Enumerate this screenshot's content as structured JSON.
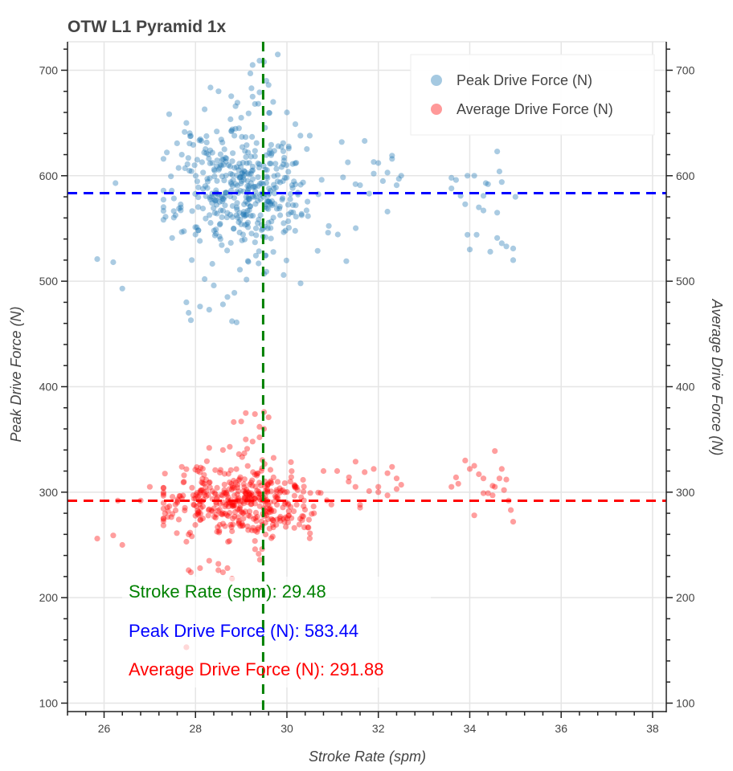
{
  "chart_data": {
    "type": "scatter",
    "title": "OTW L1 Pyramid 1x",
    "xlabel": "Stroke Rate (spm)",
    "ylabel": "Peak Drive Force (N)",
    "ylabel_right": "Average Drive Force (N)",
    "xlim": [
      25.2,
      38.3
    ],
    "ylim": [
      92,
      727
    ],
    "x_ticks": [
      "26",
      "28",
      "30",
      "32",
      "34",
      "36",
      "38"
    ],
    "x_tick_values": [
      26,
      28,
      30,
      32,
      34,
      36,
      38
    ],
    "y_ticks": [
      "100",
      "200",
      "300",
      "400",
      "500",
      "600",
      "700"
    ],
    "y_tick_values": [
      100,
      200,
      300,
      400,
      500,
      600,
      700
    ],
    "grid": true,
    "legend_position": "top-right",
    "legend": [
      {
        "label": "Peak Drive Force (N)",
        "color": "#1f77b4"
      },
      {
        "label": "Average Drive Force (N)",
        "color": "#ff0000"
      }
    ],
    "reference_lines": {
      "stroke_rate_mean": {
        "value": 29.48,
        "color": "#008000"
      },
      "peak_force_mean": {
        "value": 583.44,
        "color": "#0000ff"
      },
      "avg_force_mean": {
        "value": 291.88,
        "color": "#ff0000"
      }
    },
    "annotations": [
      {
        "text": "Stroke Rate (spm):  29.48",
        "color": "#008000"
      },
      {
        "text": "Peak Drive Force (N): 583.44",
        "color": "#0000ff"
      },
      {
        "text": "Average Drive Force (N): 291.88",
        "color": "#ff0000"
      }
    ],
    "series": [
      {
        "name": "Peak Drive Force (N)",
        "color": "#1f77b4",
        "cluster": {
          "n": 430,
          "seed": 11,
          "x_mean": 29.1,
          "x_sd": 0.85,
          "y_mean": 590,
          "y_sd": 32
        },
        "points": [
          [
            25.85,
            521
          ],
          [
            26.2,
            518
          ],
          [
            26.4,
            493
          ],
          [
            26.25,
            593
          ],
          [
            27.8,
            480
          ],
          [
            27.9,
            463
          ],
          [
            27.85,
            470
          ],
          [
            28.1,
            476
          ],
          [
            28.3,
            473
          ],
          [
            28.6,
            478
          ],
          [
            28.8,
            462
          ],
          [
            28.9,
            461
          ],
          [
            28.85,
            489
          ],
          [
            28.7,
            485
          ],
          [
            28.4,
            496
          ],
          [
            28.2,
            502
          ],
          [
            29.5,
            507
          ],
          [
            29.55,
            509
          ],
          [
            30.3,
            498
          ],
          [
            31.3,
            519
          ],
          [
            30.9,
            546
          ],
          [
            29.0,
            655
          ],
          [
            29.3,
            668
          ],
          [
            29.4,
            679
          ],
          [
            29.25,
            675
          ],
          [
            29.55,
            690
          ],
          [
            29.2,
            697
          ],
          [
            29.25,
            705
          ],
          [
            29.5,
            708
          ],
          [
            29.4,
            709
          ],
          [
            29.8,
            715
          ],
          [
            29.6,
            686
          ],
          [
            29.7,
            670
          ],
          [
            30.0,
            660
          ],
          [
            28.95,
            645
          ],
          [
            27.8,
            650
          ],
          [
            28.2,
            663
          ],
          [
            30.5,
            638
          ],
          [
            31.2,
            632
          ],
          [
            31.7,
            633
          ],
          [
            31.9,
            613
          ],
          [
            32.0,
            612
          ],
          [
            32.2,
            603
          ],
          [
            32.3,
            619
          ],
          [
            32.3,
            616
          ],
          [
            32.5,
            600
          ],
          [
            32.4,
            591
          ],
          [
            32.1,
            595
          ],
          [
            31.5,
            592
          ],
          [
            31.6,
            591
          ],
          [
            31.8,
            583
          ],
          [
            32.2,
            566
          ],
          [
            31.9,
            602
          ],
          [
            32.45,
            597
          ],
          [
            33.6,
            598
          ],
          [
            33.7,
            596
          ],
          [
            33.6,
            588
          ],
          [
            33.8,
            581
          ],
          [
            33.9,
            573
          ],
          [
            33.95,
            600
          ],
          [
            34.1,
            600
          ],
          [
            34.2,
            570
          ],
          [
            34.4,
            592
          ],
          [
            34.35,
            593
          ],
          [
            34.65,
            604
          ],
          [
            34.6,
            623
          ],
          [
            34.7,
            594
          ],
          [
            34.3,
            567
          ],
          [
            34.6,
            565
          ],
          [
            33.95,
            544
          ],
          [
            34.15,
            544
          ],
          [
            34.0,
            530
          ],
          [
            34.45,
            528
          ],
          [
            34.6,
            541
          ],
          [
            34.7,
            536
          ],
          [
            34.8,
            533
          ],
          [
            34.95,
            531
          ],
          [
            34.95,
            520
          ],
          [
            34.3,
            581
          ],
          [
            35.0,
            580
          ]
        ]
      },
      {
        "name": "Average Drive Force (N)",
        "color": "#ff0000",
        "cluster": {
          "n": 420,
          "seed": 29,
          "x_mean": 29.05,
          "x_sd": 0.85,
          "y_mean": 290,
          "y_sd": 18
        },
        "points": [
          [
            25.85,
            256
          ],
          [
            26.2,
            259
          ],
          [
            26.4,
            250
          ],
          [
            26.3,
            292
          ],
          [
            26.8,
            292
          ],
          [
            27.0,
            305
          ],
          [
            27.3,
            304
          ],
          [
            27.6,
            290
          ],
          [
            27.4,
            282
          ],
          [
            27.7,
            294
          ],
          [
            27.7,
            324
          ],
          [
            27.75,
            316
          ],
          [
            28.05,
            320
          ],
          [
            27.8,
            253
          ],
          [
            27.85,
            260
          ],
          [
            27.85,
            226
          ],
          [
            27.9,
            224
          ],
          [
            28.1,
            228
          ],
          [
            28.3,
            235
          ],
          [
            28.5,
            226
          ],
          [
            28.6,
            224
          ],
          [
            28.5,
            232
          ],
          [
            28.7,
            228
          ],
          [
            28.8,
            218
          ],
          [
            27.8,
            153
          ],
          [
            29.1,
            375
          ],
          [
            29.3,
            374
          ],
          [
            29.0,
            367
          ],
          [
            29.5,
            376
          ],
          [
            29.6,
            371
          ],
          [
            29.5,
            360
          ],
          [
            29.4,
            362
          ],
          [
            29.25,
            348
          ],
          [
            29.4,
            352
          ],
          [
            29.1,
            350
          ],
          [
            28.75,
            343
          ],
          [
            28.95,
            336
          ],
          [
            28.3,
            342
          ],
          [
            28.6,
            340
          ],
          [
            30.8,
            320
          ],
          [
            31.1,
            320
          ],
          [
            31.35,
            310
          ],
          [
            31.5,
            305
          ],
          [
            31.7,
            319
          ],
          [
            31.9,
            322
          ],
          [
            32.0,
            305
          ],
          [
            32.2,
            318
          ],
          [
            32.4,
            313
          ],
          [
            32.3,
            324
          ],
          [
            32.2,
            297
          ],
          [
            32.0,
            300
          ],
          [
            31.8,
            301
          ],
          [
            32.4,
            303
          ],
          [
            32.5,
            307
          ],
          [
            31.6,
            288
          ],
          [
            33.6,
            305
          ],
          [
            33.7,
            314
          ],
          [
            33.75,
            308
          ],
          [
            33.9,
            330
          ],
          [
            34.0,
            322
          ],
          [
            34.1,
            325
          ],
          [
            34.2,
            317
          ],
          [
            34.3,
            299
          ],
          [
            34.4,
            299
          ],
          [
            34.5,
            306
          ],
          [
            34.55,
            305
          ],
          [
            34.65,
            313
          ],
          [
            34.7,
            322
          ],
          [
            34.8,
            312
          ],
          [
            34.75,
            302
          ],
          [
            34.55,
            339
          ],
          [
            34.85,
            292
          ],
          [
            34.9,
            283
          ],
          [
            34.95,
            272
          ],
          [
            34.3,
            313
          ],
          [
            34.1,
            278
          ],
          [
            34.5,
            297
          ]
        ]
      }
    ]
  }
}
